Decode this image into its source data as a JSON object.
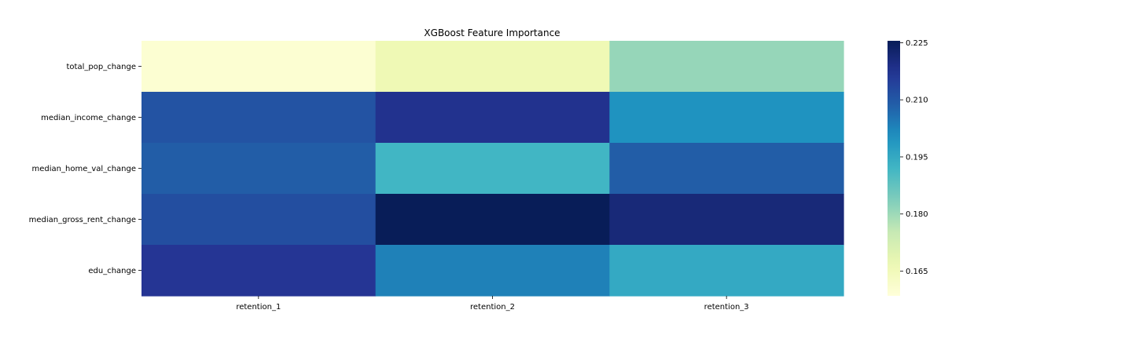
{
  "chart_data": {
    "type": "heatmap",
    "title": "XGBoost Feature Importance",
    "xlabel": "",
    "ylabel": "",
    "colormap": "YlGnBu",
    "x_categories": [
      "retention_1",
      "retention_2",
      "retention_3"
    ],
    "y_categories": [
      "total_pop_change",
      "median_income_change",
      "median_home_val_change",
      "median_gross_rent_change",
      "edu_change"
    ],
    "values": [
      [
        0.16,
        0.166,
        0.181
      ],
      [
        0.211,
        0.218,
        0.2
      ],
      [
        0.209,
        0.192,
        0.209
      ],
      [
        0.212,
        0.227,
        0.221
      ],
      [
        0.217,
        0.203,
        0.195
      ]
    ],
    "colorbar": {
      "min": 0.1585,
      "max": 0.2255,
      "ticks": [
        0.165,
        0.18,
        0.195,
        0.21,
        0.225
      ],
      "tick_labels": [
        "0.165",
        "0.180",
        "0.195",
        "0.210",
        "0.225"
      ]
    },
    "grid": false,
    "legend": "colorbar-right"
  }
}
